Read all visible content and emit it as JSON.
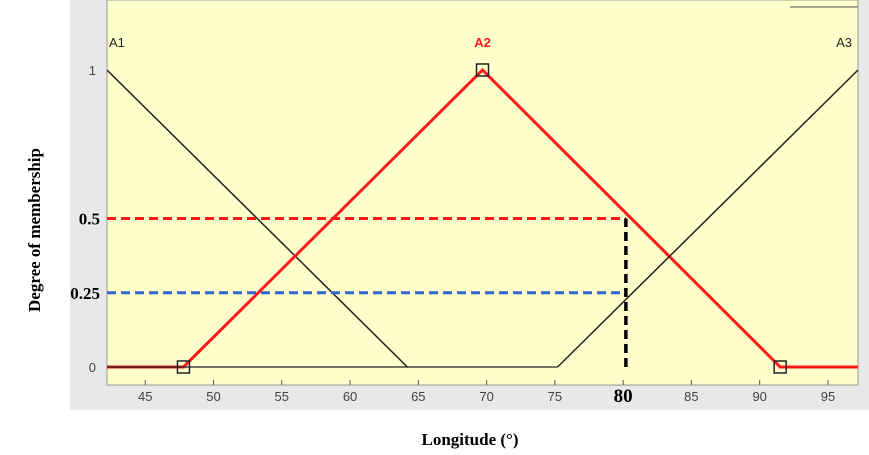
{
  "chart_data": {
    "type": "line",
    "title": "",
    "xlabel": "Longitude (°)",
    "ylabel": "Degree of membership",
    "xlim": [
      42.2,
      97.2
    ],
    "ylim": [
      0,
      1
    ],
    "grid": false,
    "x_ticks": [
      45,
      50,
      55,
      60,
      65,
      70,
      75,
      80,
      85,
      90,
      95
    ],
    "x_tick_labels": [
      "45",
      "50",
      "55",
      "60",
      "65",
      "70",
      "75",
      "80",
      "85",
      "90",
      "95"
    ],
    "highlighted_x_tick": "80",
    "y_ticks": [
      0,
      1
    ],
    "y_tick_labels": [
      "0",
      "1"
    ],
    "y_annotation_labels": [
      {
        "value": 0.5,
        "label": "0.5"
      },
      {
        "value": 0.25,
        "label": "0.25"
      }
    ],
    "series": [
      {
        "name": "A1",
        "color": "#222222",
        "points": [
          [
            42.2,
            1
          ],
          [
            64.2,
            0
          ]
        ]
      },
      {
        "name": "A2",
        "color": "#ff1a1a",
        "points": [
          [
            42.2,
            0
          ],
          [
            47.8,
            0
          ],
          [
            69.7,
            1
          ],
          [
            91.5,
            0
          ],
          [
            97.2,
            0
          ]
        ],
        "markers": [
          [
            47.8,
            0
          ],
          [
            69.7,
            1
          ],
          [
            91.5,
            0
          ]
        ]
      },
      {
        "name": "A3",
        "color": "#222222",
        "points": [
          [
            75.2,
            0
          ],
          [
            97.2,
            1
          ],
          [
            42.2,
            0
          ]
        ]
      }
    ],
    "annotations": [
      {
        "type": "hline",
        "y": 0.5,
        "x_from": 42.2,
        "x_to": 80.2,
        "color": "#ff1a1a",
        "style": "dashed"
      },
      {
        "type": "hline",
        "y": 0.25,
        "x_from": 42.2,
        "x_to": 80.2,
        "color": "#3366cc",
        "style": "dashed"
      },
      {
        "type": "vline",
        "x": 80.2,
        "y_from": 0,
        "y_to": 0.5,
        "color": "#000000",
        "style": "dashed"
      }
    ],
    "series_labels": [
      {
        "text": "A1",
        "x": 42.2,
        "color": "#222222",
        "bold": false
      },
      {
        "text": "A2",
        "x": 69.7,
        "color": "#ff1a1a",
        "bold": true
      },
      {
        "text": "A3",
        "x": 97.2,
        "color": "#222222",
        "bold": false
      }
    ],
    "colors": {
      "plot_background": "#ffffcc",
      "panel_background": "#e8e8e8"
    }
  }
}
